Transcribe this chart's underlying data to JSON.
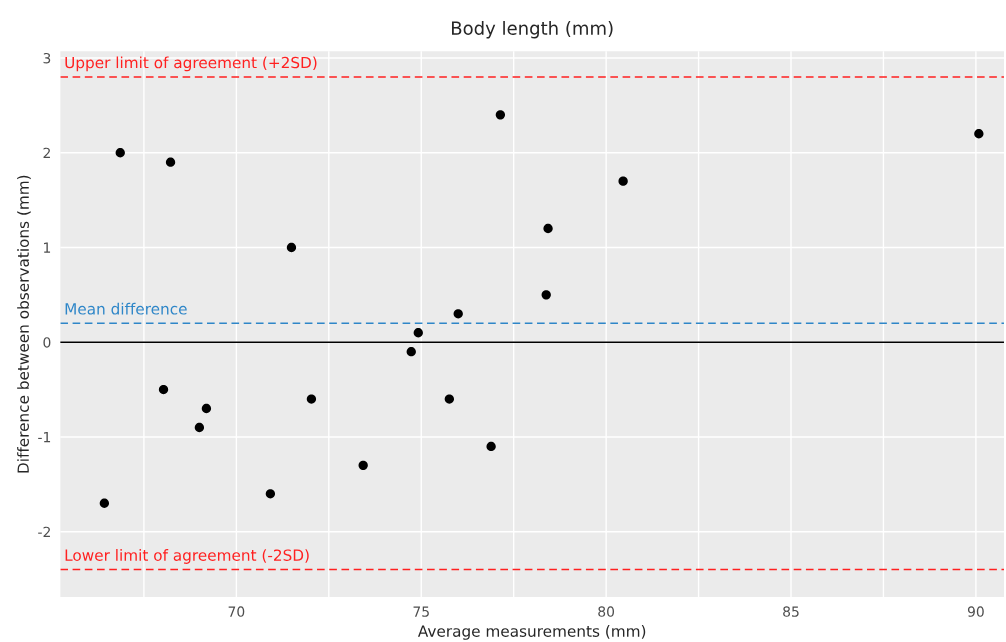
{
  "chart_data": {
    "type": "scatter",
    "title": "Body length (mm)",
    "xlabel": "Average measurements (mm)",
    "ylabel": "Difference between observations (mm)",
    "x": [
      66.43,
      66.86,
      68.03,
      68.22,
      69.0,
      69.19,
      70.92,
      71.49,
      72.03,
      73.43,
      74.73,
      74.92,
      75.76,
      76.0,
      76.89,
      77.14,
      78.38,
      78.43,
      80.46,
      90.08
    ],
    "series": [
      {
        "color": "#000000",
        "values": [
          -1.7,
          2.0,
          -0.5,
          1.9,
          -0.9,
          -0.7,
          -1.6,
          1.0,
          -0.6,
          -1.3,
          -0.1,
          0.1,
          -0.6,
          0.3,
          -1.1,
          2.4,
          0.5,
          1.2,
          1.7,
          2.2
        ]
      }
    ],
    "xlim": [
      65.24,
      90.76
    ],
    "ylim": [
      -2.69,
      3.07
    ],
    "xticks": [
      70,
      75,
      80,
      85,
      90
    ],
    "yticks": [
      -2,
      -1,
      0,
      1,
      2,
      3
    ],
    "ref_lines": [
      {
        "axis": "y",
        "value": 2.8,
        "label": "Upper limit of agreement (+2SD)",
        "color": "#ff2020",
        "line_style": "dashed"
      },
      {
        "axis": "y",
        "value": 0.2,
        "label": "Mean difference",
        "color": "#2e86c8",
        "line_style": "dashed"
      },
      {
        "axis": "y",
        "value": -2.4,
        "label": "Lower limit of agreement (-2SD)",
        "color": "#ff2020",
        "line_style": "dashed"
      },
      {
        "axis": "y",
        "value": 0,
        "color": "#000000",
        "line_style": "solid"
      }
    ],
    "grid": true,
    "marker": "circle",
    "legend": false
  }
}
